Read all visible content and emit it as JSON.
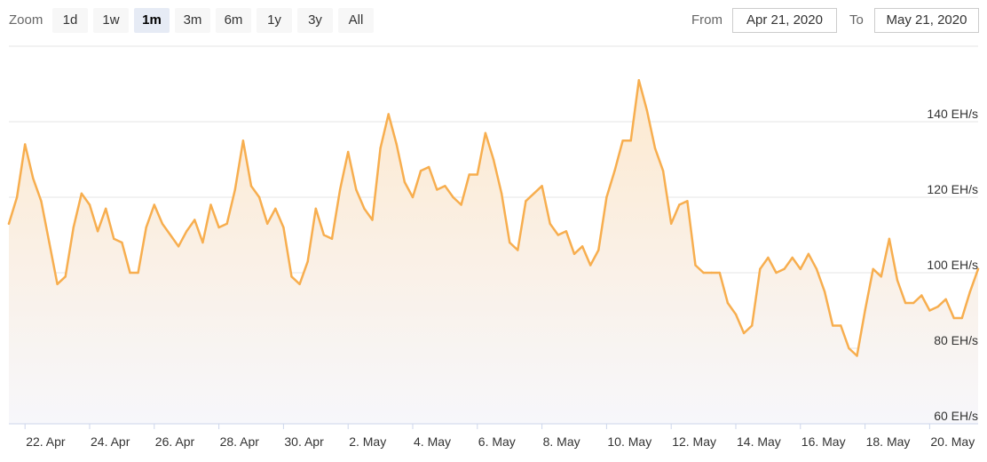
{
  "range_selector": {
    "zoom_label": "Zoom",
    "buttons": [
      "1d",
      "1w",
      "1m",
      "3m",
      "6m",
      "1y",
      "3y",
      "All"
    ],
    "selected": "1m",
    "from_label": "From",
    "from_value": "Apr 21, 2020",
    "to_label": "To",
    "to_value": "May 21, 2020"
  },
  "colors": {
    "line": "#f7ae4f",
    "fill_top": "#fde9cf",
    "fill_bottom": "#f7f7fb",
    "grid": "#e6e6e6",
    "axis_text": "#333333"
  },
  "chart_data": {
    "type": "area",
    "title": "",
    "xlabel": "",
    "ylabel": "",
    "y_unit": "EH/s",
    "ylim": [
      60,
      160
    ],
    "yticks": [
      60,
      80,
      100,
      120,
      140
    ],
    "ytick_labels": [
      "60 EH/s",
      "80 EH/s",
      "100 EH/s",
      "120 EH/s",
      "140 EH/s"
    ],
    "xticks": [
      "2020-04-22",
      "2020-04-24",
      "2020-04-26",
      "2020-04-28",
      "2020-04-30",
      "2020-05-02",
      "2020-05-04",
      "2020-05-06",
      "2020-05-08",
      "2020-05-10",
      "2020-05-12",
      "2020-05-14",
      "2020-05-16",
      "2020-05-18",
      "2020-05-20"
    ],
    "xtick_labels": [
      "22. Apr",
      "24. Apr",
      "26. Apr",
      "28. Apr",
      "30. Apr",
      "2. May",
      "4. May",
      "6. May",
      "8. May",
      "10. May",
      "12. May",
      "14. May",
      "16. May",
      "18. May",
      "20. May"
    ],
    "x_range": [
      "2020-04-21T12:00",
      "2020-05-21T12:00"
    ],
    "grid": true,
    "series": [
      {
        "x": [
          "2020-04-21T12:00",
          "2020-04-21T18:00",
          "2020-04-22T00:00",
          "2020-04-22T06:00",
          "2020-04-22T12:00",
          "2020-04-22T18:00",
          "2020-04-23T00:00",
          "2020-04-23T06:00",
          "2020-04-23T12:00",
          "2020-04-23T18:00",
          "2020-04-24T00:00",
          "2020-04-24T06:00",
          "2020-04-24T12:00",
          "2020-04-24T18:00",
          "2020-04-25T00:00",
          "2020-04-25T06:00",
          "2020-04-25T12:00",
          "2020-04-25T18:00",
          "2020-04-26T00:00",
          "2020-04-26T06:00",
          "2020-04-26T12:00",
          "2020-04-26T18:00",
          "2020-04-27T00:00",
          "2020-04-27T06:00",
          "2020-04-27T12:00",
          "2020-04-27T18:00",
          "2020-04-28T00:00",
          "2020-04-28T06:00",
          "2020-04-28T12:00",
          "2020-04-28T18:00",
          "2020-04-29T00:00",
          "2020-04-29T06:00",
          "2020-04-29T12:00",
          "2020-04-29T18:00",
          "2020-04-30T00:00",
          "2020-04-30T06:00",
          "2020-04-30T12:00",
          "2020-04-30T18:00",
          "2020-05-01T00:00",
          "2020-05-01T06:00",
          "2020-05-01T12:00",
          "2020-05-01T18:00",
          "2020-05-02T00:00",
          "2020-05-02T06:00",
          "2020-05-02T12:00",
          "2020-05-02T18:00",
          "2020-05-03T00:00",
          "2020-05-03T06:00",
          "2020-05-03T12:00",
          "2020-05-03T18:00",
          "2020-05-04T00:00",
          "2020-05-04T06:00",
          "2020-05-04T12:00",
          "2020-05-04T18:00",
          "2020-05-05T00:00",
          "2020-05-05T06:00",
          "2020-05-05T12:00",
          "2020-05-05T18:00",
          "2020-05-06T00:00",
          "2020-05-06T06:00",
          "2020-05-06T12:00",
          "2020-05-06T18:00",
          "2020-05-07T00:00",
          "2020-05-07T06:00",
          "2020-05-07T12:00",
          "2020-05-07T18:00",
          "2020-05-08T00:00",
          "2020-05-08T06:00",
          "2020-05-08T12:00",
          "2020-05-08T18:00",
          "2020-05-09T00:00",
          "2020-05-09T06:00",
          "2020-05-09T12:00",
          "2020-05-09T18:00",
          "2020-05-10T00:00",
          "2020-05-10T06:00",
          "2020-05-10T12:00",
          "2020-05-10T18:00",
          "2020-05-11T00:00",
          "2020-05-11T06:00",
          "2020-05-11T12:00",
          "2020-05-11T18:00",
          "2020-05-12T00:00",
          "2020-05-12T06:00",
          "2020-05-12T12:00",
          "2020-05-12T18:00",
          "2020-05-13T00:00",
          "2020-05-13T06:00",
          "2020-05-13T12:00",
          "2020-05-13T18:00",
          "2020-05-14T00:00",
          "2020-05-14T06:00",
          "2020-05-14T12:00",
          "2020-05-14T18:00",
          "2020-05-15T00:00",
          "2020-05-15T06:00",
          "2020-05-15T12:00",
          "2020-05-15T18:00",
          "2020-05-16T00:00",
          "2020-05-16T06:00",
          "2020-05-16T12:00",
          "2020-05-16T18:00",
          "2020-05-17T00:00",
          "2020-05-17T06:00",
          "2020-05-17T12:00",
          "2020-05-17T18:00",
          "2020-05-18T00:00",
          "2020-05-18T06:00",
          "2020-05-18T12:00",
          "2020-05-18T18:00",
          "2020-05-19T00:00",
          "2020-05-19T06:00",
          "2020-05-19T12:00",
          "2020-05-19T18:00",
          "2020-05-20T00:00",
          "2020-05-20T06:00",
          "2020-05-20T12:00",
          "2020-05-20T18:00",
          "2020-05-21T00:00",
          "2020-05-21T06:00",
          "2020-05-21T12:00"
        ],
        "y": [
          113,
          120,
          134,
          125,
          119,
          108,
          97,
          99,
          112,
          121,
          118,
          111,
          117,
          109,
          108,
          100,
          100,
          112,
          118,
          113,
          110,
          107,
          111,
          114,
          108,
          118,
          112,
          113,
          122,
          135,
          123,
          120,
          113,
          117,
          112,
          99,
          97,
          103,
          117,
          110,
          109,
          122,
          132,
          122,
          117,
          114,
          133,
          142,
          134,
          124,
          120,
          127,
          128,
          122,
          123,
          120,
          118,
          126,
          126,
          137,
          130,
          121,
          108,
          106,
          119,
          121,
          123,
          113,
          110,
          111,
          105,
          107,
          102,
          106,
          120,
          127,
          135,
          135,
          151,
          143,
          133,
          127,
          113,
          118,
          119,
          102,
          100,
          100,
          100,
          92,
          89,
          84,
          86,
          101,
          104,
          100,
          101,
          104,
          101,
          105,
          101,
          95,
          86,
          86,
          80,
          78,
          90,
          101,
          99,
          109,
          98,
          92,
          92,
          94,
          90,
          91,
          93,
          88,
          88,
          95,
          101
        ]
      }
    ]
  }
}
